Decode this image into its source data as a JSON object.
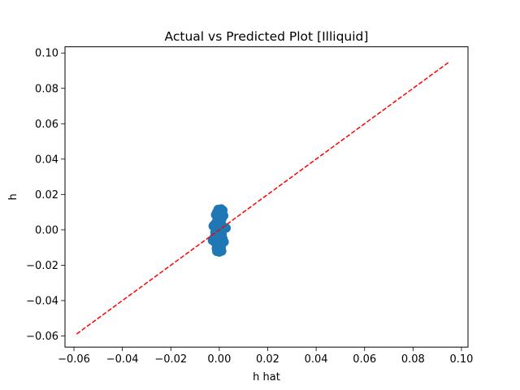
{
  "chart_data": {
    "type": "scatter",
    "title": "Actual vs Predicted Plot [Illiquid]",
    "xlabel": "h hat",
    "ylabel": "h",
    "xlim": [
      -0.0637,
      0.1027
    ],
    "ylim": [
      -0.0663,
      0.1035
    ],
    "xticks": [
      -0.06,
      -0.04,
      -0.02,
      0.0,
      0.02,
      0.04,
      0.06,
      0.08,
      0.1
    ],
    "xtick_labels": [
      "−0.06",
      "−0.04",
      "−0.02",
      "0.00",
      "0.02",
      "0.04",
      "0.06",
      "0.08",
      "0.10"
    ],
    "yticks": [
      -0.06,
      -0.04,
      -0.02,
      0.0,
      0.02,
      0.04,
      0.06,
      0.08,
      0.1
    ],
    "ytick_labels": [
      "−0.06",
      "−0.04",
      "−0.02",
      "0.00",
      "0.02",
      "0.04",
      "0.06",
      "0.08",
      "0.10"
    ],
    "grid": false,
    "scatter_color": "#1f77b4",
    "line_color": "#ff0000",
    "line_style": "dashed",
    "reference_line": {
      "x": [
        -0.0589,
        0.0948
      ],
      "y": [
        -0.0589,
        0.0948
      ]
    },
    "points": [
      {
        "x": -0.0005,
        "y": 0.0115
      },
      {
        "x": 0.0008,
        "y": 0.0118
      },
      {
        "x": 0.0015,
        "y": 0.011
      },
      {
        "x": -0.001,
        "y": 0.01
      },
      {
        "x": 0.0002,
        "y": 0.0095
      },
      {
        "x": 0.0012,
        "y": 0.009
      },
      {
        "x": -0.0015,
        "y": 0.0085
      },
      {
        "x": 0.0018,
        "y": 0.008
      },
      {
        "x": 0.0005,
        "y": 0.0075
      },
      {
        "x": -0.0008,
        "y": 0.0065
      },
      {
        "x": 0.001,
        "y": 0.006
      },
      {
        "x": 0.0,
        "y": 0.0055
      },
      {
        "x": -0.0012,
        "y": 0.0045
      },
      {
        "x": 0.0006,
        "y": 0.004
      },
      {
        "x": -0.002,
        "y": 0.003
      },
      {
        "x": -0.0025,
        "y": 0.0022
      },
      {
        "x": 0.0012,
        "y": 0.0025
      },
      {
        "x": 0.0028,
        "y": 0.001
      },
      {
        "x": 0.0,
        "y": 0.0012
      },
      {
        "x": -0.001,
        "y": 0.0005
      },
      {
        "x": 0.0015,
        "y": 0.0002
      },
      {
        "x": -0.0005,
        "y": -0.0005
      },
      {
        "x": 0.0008,
        "y": -0.001
      },
      {
        "x": -0.0018,
        "y": -0.0015
      },
      {
        "x": 0.0003,
        "y": -0.002
      },
      {
        "x": 0.0012,
        "y": -0.0028
      },
      {
        "x": -0.001,
        "y": -0.0032
      },
      {
        "x": -0.0022,
        "y": -0.0045
      },
      {
        "x": 0.0005,
        "y": -0.004
      },
      {
        "x": 0.0015,
        "y": -0.005
      },
      {
        "x": -0.0008,
        "y": -0.0055
      },
      {
        "x": -0.0028,
        "y": -0.006
      },
      {
        "x": 0.002,
        "y": -0.0068
      },
      {
        "x": 0.0,
        "y": -0.0065
      },
      {
        "x": -0.0015,
        "y": -0.0075
      },
      {
        "x": 0.001,
        "y": -0.008
      },
      {
        "x": -0.0005,
        "y": -0.009
      },
      {
        "x": 0.0008,
        "y": -0.0095
      },
      {
        "x": -0.0012,
        "y": -0.0105
      },
      {
        "x": 0.0003,
        "y": -0.011
      },
      {
        "x": -0.001,
        "y": -0.0122
      },
      {
        "x": 0.001,
        "y": -0.012
      },
      {
        "x": 0.0,
        "y": -0.0125
      }
    ]
  }
}
